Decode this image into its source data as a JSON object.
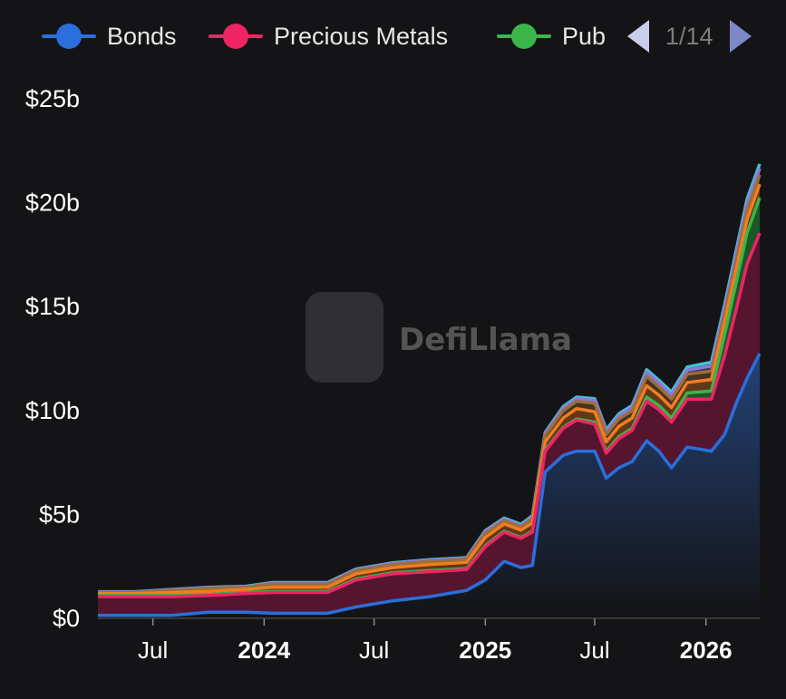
{
  "legend": {
    "items": [
      {
        "label": "Bonds",
        "color": "#2a6fdb"
      },
      {
        "label": "Precious Metals",
        "color": "#ee2464"
      },
      {
        "label": "Pub",
        "color": "#3bb54a"
      }
    ],
    "pager": "1/14"
  },
  "watermark": "DefiLlama",
  "chart_data": {
    "type": "area",
    "stacked": true,
    "x_range": [
      "2023-04-01",
      "2026-03-31"
    ],
    "ylim": [
      0,
      25
    ],
    "y_unit": "USD billions",
    "y_ticks": [
      "$0",
      "$5b",
      "$10b",
      "$15b",
      "$20b",
      "$25b"
    ],
    "x_ticks": [
      {
        "label": "Jul",
        "date": "2023-07-01",
        "bold": false
      },
      {
        "label": "2024",
        "date": "2024-01-01",
        "bold": true
      },
      {
        "label": "Jul",
        "date": "2024-07-01",
        "bold": false
      },
      {
        "label": "2025",
        "date": "2025-01-01",
        "bold": true
      },
      {
        "label": "Jul",
        "date": "2025-07-01",
        "bold": false
      },
      {
        "label": "2026",
        "date": "2026-01-01",
        "bold": true
      }
    ],
    "grid": false,
    "legend_position": "top",
    "dates": [
      "2023-04-01",
      "2023-06-01",
      "2023-08-01",
      "2023-10-01",
      "2023-12-01",
      "2024-01-15",
      "2024-03-01",
      "2024-04-15",
      "2024-06-01",
      "2024-08-01",
      "2024-10-01",
      "2024-12-01",
      "2025-01-01",
      "2025-02-01",
      "2025-03-01",
      "2025-03-20",
      "2025-04-10",
      "2025-05-10",
      "2025-06-01",
      "2025-07-01",
      "2025-07-20",
      "2025-08-10",
      "2025-09-01",
      "2025-09-25",
      "2025-10-15",
      "2025-11-05",
      "2025-12-01",
      "2026-01-10",
      "2026-02-01",
      "2026-02-20",
      "2026-03-10",
      "2026-03-31"
    ],
    "series": [
      {
        "name": "Bonds",
        "color": "#2a6fdb",
        "values": [
          0.1,
          0.1,
          0.1,
          0.25,
          0.25,
          0.2,
          0.2,
          0.2,
          0.5,
          0.8,
          1.0,
          1.3,
          1.8,
          2.7,
          2.4,
          2.5,
          7.0,
          7.8,
          8.0,
          8.0,
          6.7,
          7.2,
          7.5,
          8.5,
          8.0,
          7.2,
          8.2,
          8.0,
          8.8,
          10.3,
          11.5,
          12.7
        ]
      },
      {
        "name": "Precious Metals",
        "color": "#ee2464",
        "values": [
          0.9,
          0.9,
          0.9,
          0.8,
          0.9,
          1.0,
          1.0,
          1.0,
          1.3,
          1.3,
          1.2,
          1.0,
          1.6,
          1.4,
          1.4,
          1.6,
          1.0,
          1.3,
          1.5,
          1.3,
          1.2,
          1.4,
          1.5,
          1.9,
          2.0,
          2.2,
          2.3,
          2.5,
          3.8,
          4.5,
          5.5,
          5.8
        ]
      },
      {
        "name": "Pub",
        "color": "#3bb54a",
        "values": [
          0.05,
          0.05,
          0.05,
          0.05,
          0.05,
          0.05,
          0.05,
          0.05,
          0.05,
          0.05,
          0.05,
          0.05,
          0.05,
          0.05,
          0.05,
          0.05,
          0.05,
          0.05,
          0.05,
          0.1,
          0.1,
          0.1,
          0.1,
          0.2,
          0.2,
          0.2,
          0.3,
          0.4,
          1.0,
          1.3,
          1.5,
          1.7
        ]
      },
      {
        "color": "#f47c20",
        "values": [
          0.1,
          0.1,
          0.15,
          0.15,
          0.15,
          0.2,
          0.2,
          0.2,
          0.25,
          0.25,
          0.3,
          0.3,
          0.4,
          0.35,
          0.35,
          0.4,
          0.4,
          0.45,
          0.5,
          0.5,
          0.45,
          0.5,
          0.5,
          0.55,
          0.5,
          0.5,
          0.5,
          0.55,
          0.6,
          0.6,
          0.65,
          0.65
        ]
      },
      {
        "color": "#9a6f3c",
        "values": [
          0.05,
          0.05,
          0.1,
          0.15,
          0.1,
          0.15,
          0.15,
          0.15,
          0.15,
          0.15,
          0.15,
          0.15,
          0.2,
          0.15,
          0.15,
          0.2,
          0.3,
          0.35,
          0.35,
          0.4,
          0.35,
          0.35,
          0.35,
          0.45,
          0.4,
          0.4,
          0.4,
          0.4,
          0.4,
          0.45,
          0.45,
          0.45
        ]
      },
      {
        "color": "#8f78d8",
        "values": [
          0.02,
          0.02,
          0.03,
          0.03,
          0.03,
          0.05,
          0.05,
          0.05,
          0.05,
          0.05,
          0.05,
          0.05,
          0.08,
          0.08,
          0.08,
          0.1,
          0.1,
          0.12,
          0.12,
          0.15,
          0.15,
          0.15,
          0.15,
          0.2,
          0.2,
          0.2,
          0.2,
          0.25,
          0.25,
          0.3,
          0.3,
          0.3
        ]
      },
      {
        "color": "#40c4d8",
        "values": [
          0.02,
          0.02,
          0.02,
          0.02,
          0.02,
          0.03,
          0.03,
          0.03,
          0.03,
          0.03,
          0.03,
          0.03,
          0.05,
          0.05,
          0.05,
          0.05,
          0.05,
          0.08,
          0.08,
          0.08,
          0.08,
          0.1,
          0.1,
          0.12,
          0.12,
          0.15,
          0.15,
          0.18,
          0.2,
          0.2,
          0.22,
          0.22
        ]
      }
    ]
  }
}
